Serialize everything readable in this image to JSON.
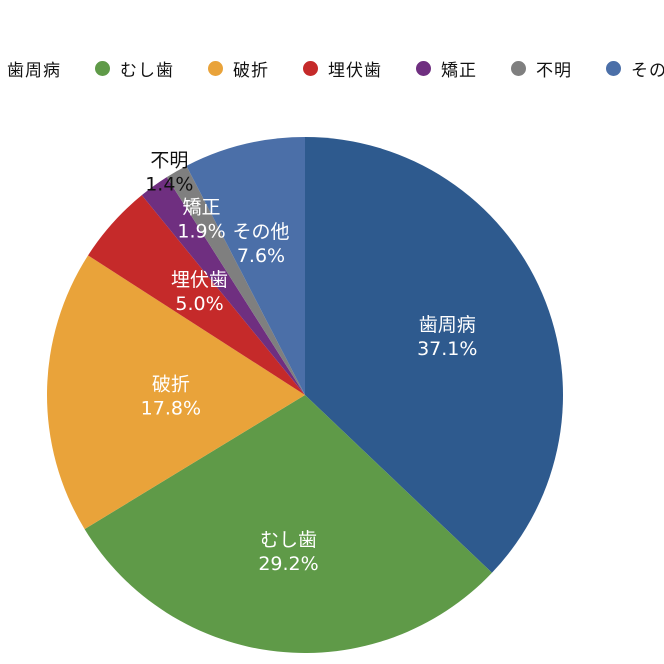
{
  "chart_data": {
    "type": "pie",
    "title": "",
    "slices": [
      {
        "label": "歯周病",
        "value": 37.1,
        "value_text": "37.1%",
        "color": "#2e5a8e",
        "label_color": "#ffffff"
      },
      {
        "label": "むし歯",
        "value": 29.2,
        "value_text": "29.2%",
        "color": "#5f9a48",
        "label_color": "#ffffff"
      },
      {
        "label": "破折",
        "value": 17.8,
        "value_text": "17.8%",
        "color": "#e9a33a",
        "label_color": "#ffffff"
      },
      {
        "label": "埋伏歯",
        "value": 5.0,
        "value_text": "5.0%",
        "color": "#c52a2a",
        "label_color": "#ffffff"
      },
      {
        "label": "矯正",
        "value": 1.9,
        "value_text": "1.9%",
        "color": "#6f2f80",
        "label_color": "#ffffff"
      },
      {
        "label": "不明",
        "value": 1.4,
        "value_text": "1.4%",
        "color": "#7f7f7f",
        "label_color": "#111111"
      },
      {
        "label": "その他",
        "value": 7.6,
        "value_text": "7.6%",
        "color": "#4b6fa8",
        "label_color": "#ffffff"
      }
    ],
    "start_angle": "top (12 o'clock)",
    "direction": "clockwise",
    "legend_position": "top"
  }
}
